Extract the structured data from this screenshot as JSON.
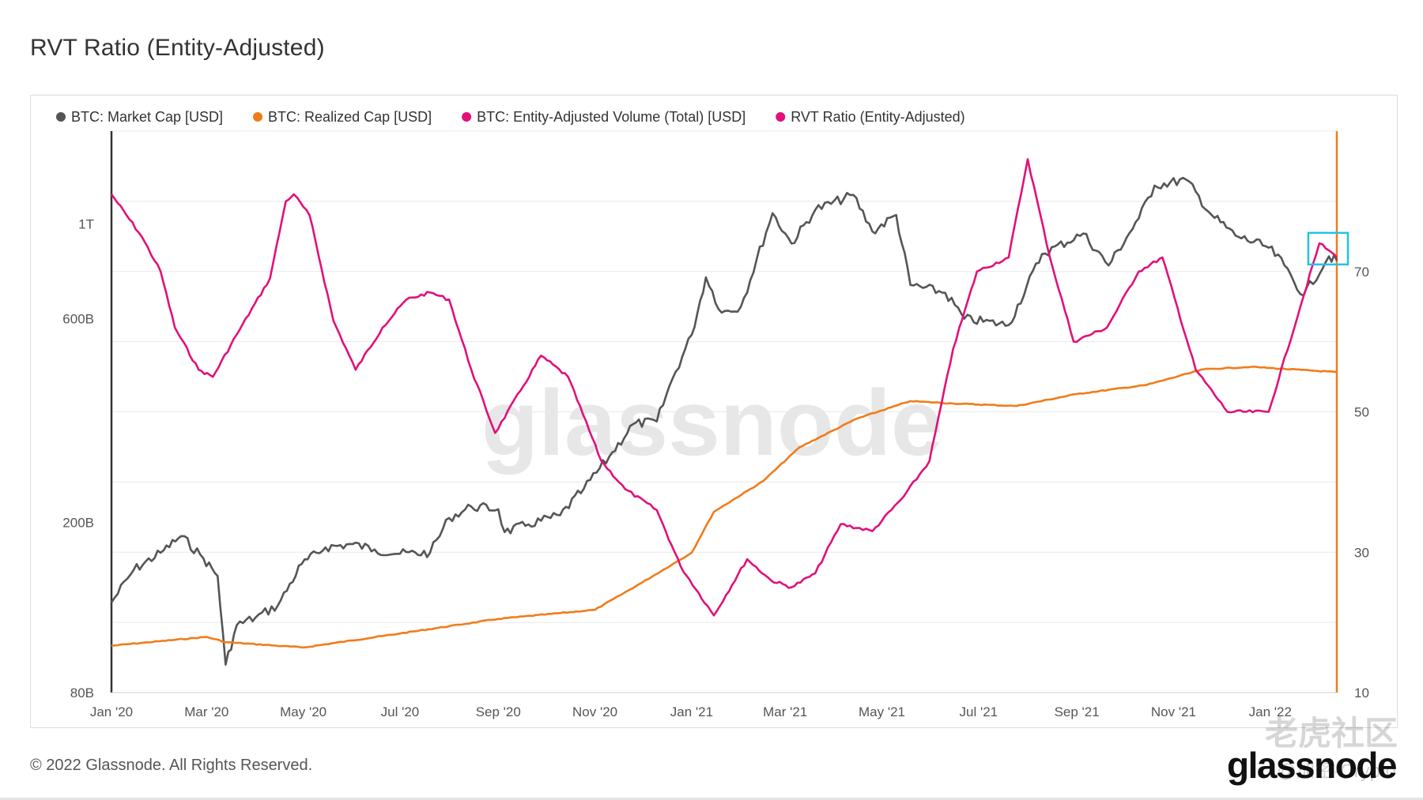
{
  "page": {
    "title": "RVT Ratio (Entity-Adjusted)",
    "copyright": "© 2022 Glassnode. All Rights Reserved.",
    "brand": "glassnode",
    "watermark": "glassnode",
    "community_watermark": "老虎社区",
    "community_handle": "@加密-Crypto"
  },
  "colors": {
    "market_cap": "#555555",
    "realized_cap": "#f07c1a",
    "volume": "#e0117a",
    "rvt": "#e0117a",
    "highlight_box": "#26c0e8",
    "grid": "#e8e8e8"
  },
  "chart_data": {
    "type": "line",
    "title": "RVT Ratio (Entity-Adjusted)",
    "legend_position": "top-left",
    "grid": true,
    "legend": [
      {
        "name": "BTC: Market Cap [USD]",
        "color": "#555555",
        "disabled": false
      },
      {
        "name": "BTC: Realized Cap [USD]",
        "color": "#f07c1a",
        "disabled": false
      },
      {
        "name": "BTC: Entity-Adjusted Volume (Total) [USD]",
        "color": "#e0117a",
        "disabled": true
      },
      {
        "name": "RVT Ratio (Entity-Adjusted)",
        "color": "#e0117a",
        "disabled": false
      }
    ],
    "x_axis": {
      "range": [
        "2020-01-01",
        "2022-02-12"
      ],
      "ticks": [
        "Jan '20",
        "Mar '20",
        "May '20",
        "Jul '20",
        "Sep '20",
        "Nov '20",
        "Jan '21",
        "Mar '21",
        "May '21",
        "Jul '21",
        "Sep '21",
        "Nov '21",
        "Jan '22"
      ],
      "tick_dates": [
        "2020-01-01",
        "2020-03-01",
        "2020-05-01",
        "2020-07-01",
        "2020-09-01",
        "2020-11-01",
        "2021-01-01",
        "2021-03-01",
        "2021-05-01",
        "2021-07-01",
        "2021-09-01",
        "2021-11-01",
        "2022-01-01"
      ]
    },
    "y_axis_left": {
      "scale": "log",
      "unit": "USD",
      "range": [
        80000000000,
        1650000000000
      ],
      "ticks": [
        {
          "label": "80B",
          "value": 80000000000
        },
        {
          "label": "200B",
          "value": 200000000000
        },
        {
          "label": "600B",
          "value": 600000000000
        },
        {
          "label": "1T",
          "value": 1000000000000
        }
      ]
    },
    "y_axis_right": {
      "scale": "linear",
      "range": [
        10,
        90
      ],
      "ticks": [
        10,
        30,
        50,
        70
      ]
    },
    "series": [
      {
        "name": "BTC: Market Cap [USD]",
        "axis": "left",
        "points": [
          [
            "2020-01-01",
            130000000000
          ],
          [
            "2020-01-15",
            155000000000
          ],
          [
            "2020-02-01",
            170000000000
          ],
          [
            "2020-02-14",
            186000000000
          ],
          [
            "2020-02-28",
            165000000000
          ],
          [
            "2020-03-08",
            150000000000
          ],
          [
            "2020-03-13",
            93000000000
          ],
          [
            "2020-03-20",
            115000000000
          ],
          [
            "2020-04-01",
            120000000000
          ],
          [
            "2020-04-15",
            128000000000
          ],
          [
            "2020-04-30",
            160000000000
          ],
          [
            "2020-05-15",
            175000000000
          ],
          [
            "2020-06-01",
            178000000000
          ],
          [
            "2020-06-15",
            173000000000
          ],
          [
            "2020-07-01",
            169000000000
          ],
          [
            "2020-07-20",
            170000000000
          ],
          [
            "2020-08-01",
            205000000000
          ],
          [
            "2020-08-15",
            218000000000
          ],
          [
            "2020-09-01",
            215000000000
          ],
          [
            "2020-09-05",
            190000000000
          ],
          [
            "2020-09-20",
            198000000000
          ],
          [
            "2020-10-10",
            208000000000
          ],
          [
            "2020-10-25",
            240000000000
          ],
          [
            "2020-11-10",
            285000000000
          ],
          [
            "2020-11-25",
            340000000000
          ],
          [
            "2020-12-10",
            345000000000
          ],
          [
            "2020-12-20",
            435000000000
          ],
          [
            "2021-01-01",
            550000000000
          ],
          [
            "2021-01-10",
            750000000000
          ],
          [
            "2021-01-20",
            620000000000
          ],
          [
            "2021-02-01",
            640000000000
          ],
          [
            "2021-02-21",
            1060000000000
          ],
          [
            "2021-03-05",
            900000000000
          ],
          [
            "2021-03-20",
            1080000000000
          ],
          [
            "2021-04-13",
            1170000000000
          ],
          [
            "2021-04-25",
            960000000000
          ],
          [
            "2021-05-10",
            1050000000000
          ],
          [
            "2021-05-19",
            720000000000
          ],
          [
            "2021-06-10",
            690000000000
          ],
          [
            "2021-06-22",
            600000000000
          ],
          [
            "2021-07-20",
            580000000000
          ],
          [
            "2021-08-10",
            850000000000
          ],
          [
            "2021-09-05",
            950000000000
          ],
          [
            "2021-09-21",
            800000000000
          ],
          [
            "2021-10-10",
            1030000000000
          ],
          [
            "2021-10-20",
            1230000000000
          ],
          [
            "2021-11-09",
            1270000000000
          ],
          [
            "2021-11-25",
            1050000000000
          ],
          [
            "2021-12-10",
            940000000000
          ],
          [
            "2021-12-31",
            880000000000
          ],
          [
            "2022-01-10",
            800000000000
          ],
          [
            "2022-01-22",
            680000000000
          ],
          [
            "2022-02-07",
            840000000000
          ],
          [
            "2022-02-12",
            820000000000
          ]
        ]
      },
      {
        "name": "BTC: Realized Cap [USD]",
        "axis": "left",
        "points": [
          [
            "2020-01-01",
            103000000000
          ],
          [
            "2020-03-01",
            108000000000
          ],
          [
            "2020-03-13",
            105000000000
          ],
          [
            "2020-05-01",
            102000000000
          ],
          [
            "2020-07-01",
            110000000000
          ],
          [
            "2020-09-01",
            119000000000
          ],
          [
            "2020-11-01",
            125000000000
          ],
          [
            "2020-12-01",
            145000000000
          ],
          [
            "2021-01-01",
            170000000000
          ],
          [
            "2021-01-15",
            212000000000
          ],
          [
            "2021-02-15",
            250000000000
          ],
          [
            "2021-03-10",
            300000000000
          ],
          [
            "2021-04-15",
            350000000000
          ],
          [
            "2021-05-19",
            385000000000
          ],
          [
            "2021-06-15",
            380000000000
          ],
          [
            "2021-07-25",
            375000000000
          ],
          [
            "2021-09-01",
            400000000000
          ],
          [
            "2021-10-15",
            420000000000
          ],
          [
            "2021-11-20",
            457000000000
          ],
          [
            "2021-12-20",
            463000000000
          ],
          [
            "2022-02-12",
            450000000000
          ]
        ]
      },
      {
        "name": "RVT Ratio (Entity-Adjusted)",
        "axis": "right",
        "points": [
          [
            "2020-01-01",
            81
          ],
          [
            "2020-01-20",
            75
          ],
          [
            "2020-02-01",
            70
          ],
          [
            "2020-02-10",
            62
          ],
          [
            "2020-02-25",
            56
          ],
          [
            "2020-03-05",
            55
          ],
          [
            "2020-03-20",
            61
          ],
          [
            "2020-04-10",
            69
          ],
          [
            "2020-04-20",
            80
          ],
          [
            "2020-04-25",
            81
          ],
          [
            "2020-05-05",
            78
          ],
          [
            "2020-05-20",
            63
          ],
          [
            "2020-06-03",
            56
          ],
          [
            "2020-06-20",
            62
          ],
          [
            "2020-07-05",
            66
          ],
          [
            "2020-07-20",
            67
          ],
          [
            "2020-08-01",
            66
          ],
          [
            "2020-08-15",
            56
          ],
          [
            "2020-08-30",
            47
          ],
          [
            "2020-09-15",
            53
          ],
          [
            "2020-09-28",
            58
          ],
          [
            "2020-10-15",
            55
          ],
          [
            "2020-11-05",
            43
          ],
          [
            "2020-11-20",
            39
          ],
          [
            "2020-12-10",
            36
          ],
          [
            "2020-12-25",
            28
          ],
          [
            "2021-01-15",
            21
          ],
          [
            "2021-02-05",
            29
          ],
          [
            "2021-02-20",
            26
          ],
          [
            "2021-03-05",
            25
          ],
          [
            "2021-03-20",
            27
          ],
          [
            "2021-04-05",
            34
          ],
          [
            "2021-04-25",
            33
          ],
          [
            "2021-05-15",
            38
          ],
          [
            "2021-05-31",
            43
          ],
          [
            "2021-06-15",
            59
          ],
          [
            "2021-06-30",
            70
          ],
          [
            "2021-07-20",
            72
          ],
          [
            "2021-08-01",
            86
          ],
          [
            "2021-08-15",
            72
          ],
          [
            "2021-08-30",
            60
          ],
          [
            "2021-09-20",
            62
          ],
          [
            "2021-10-10",
            70
          ],
          [
            "2021-10-25",
            72
          ],
          [
            "2021-11-15",
            56
          ],
          [
            "2021-12-05",
            50
          ],
          [
            "2021-12-31",
            50
          ],
          [
            "2022-01-20",
            65
          ],
          [
            "2022-02-01",
            74
          ],
          [
            "2022-02-07",
            73
          ],
          [
            "2022-02-12",
            72
          ]
        ]
      }
    ],
    "annotations": [
      {
        "type": "highlight-box",
        "x_range": [
          "2022-01-25",
          "2022-02-12"
        ],
        "y_range_right": [
          71,
          75.5
        ],
        "color": "#26c0e8"
      }
    ]
  }
}
